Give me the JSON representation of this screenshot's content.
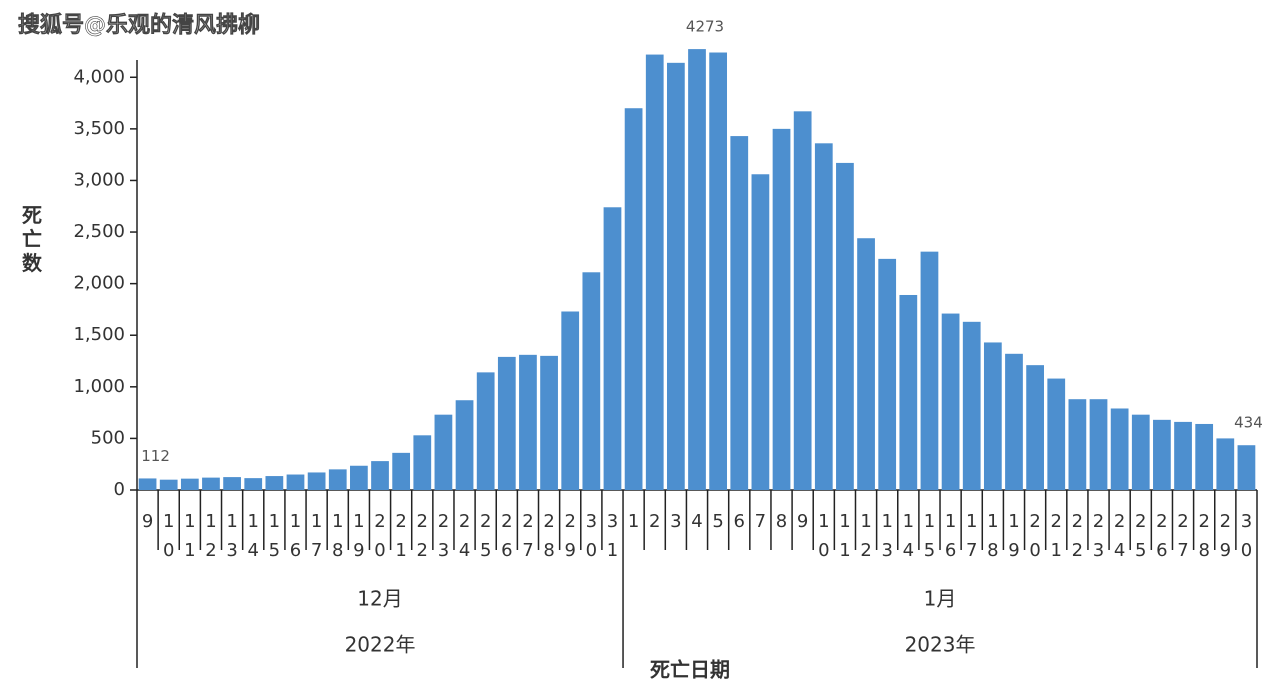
{
  "chart_data": {
    "type": "bar",
    "watermark": "搜狐号@乐观的清风拂柳",
    "y_label": "死亡数",
    "x_label": "死亡日期",
    "color": "#4d8fcf",
    "months": [
      {
        "label": "12月",
        "year": "2022年",
        "days": [
          "9",
          "10",
          "11",
          "12",
          "13",
          "14",
          "15",
          "16",
          "17",
          "18",
          "19",
          "20",
          "21",
          "22",
          "23",
          "24",
          "25",
          "26",
          "27",
          "28",
          "29",
          "30",
          "31"
        ]
      },
      {
        "label": "1月",
        "year": "2023年",
        "days": [
          "1",
          "2",
          "3",
          "4",
          "5",
          "6",
          "7",
          "8",
          "9",
          "10",
          "11",
          "12",
          "13",
          "14",
          "15",
          "16",
          "17",
          "18",
          "19",
          "20",
          "21",
          "22",
          "23",
          "24",
          "25",
          "26",
          "27",
          "28",
          "29",
          "30"
        ]
      }
    ],
    "values": [
      112,
      100,
      110,
      120,
      125,
      115,
      135,
      150,
      170,
      200,
      235,
      280,
      360,
      530,
      730,
      870,
      1140,
      1290,
      1310,
      1300,
      1730,
      2110,
      2740,
      3700,
      4220,
      4140,
      4273,
      4240,
      3430,
      3060,
      3500,
      3670,
      3360,
      3170,
      2440,
      2240,
      1890,
      2310,
      1710,
      1630,
      1430,
      1320,
      1210,
      1080,
      880,
      880,
      790,
      730,
      680,
      660,
      640,
      500,
      434
    ],
    "value_labels": [
      "112",
      null,
      null,
      null,
      null,
      null,
      null,
      null,
      null,
      null,
      null,
      null,
      null,
      null,
      null,
      null,
      null,
      null,
      null,
      null,
      null,
      null,
      null,
      null,
      null,
      null,
      "4273",
      null,
      null,
      null,
      null,
      null,
      null,
      null,
      null,
      null,
      null,
      null,
      null,
      null,
      null,
      null,
      null,
      null,
      null,
      null,
      null,
      null,
      null,
      null,
      null,
      null,
      "434"
    ],
    "ylim": [
      0,
      4400
    ],
    "yticks": [
      0,
      500,
      {
        "value": 1000,
        "label": "1,000"
      },
      {
        "value": 1500,
        "label": "1,500"
      },
      {
        "value": 2000,
        "label": "2,000"
      },
      {
        "value": 2500,
        "label": "2,500"
      },
      {
        "value": 3000,
        "label": "3,000"
      },
      {
        "value": 3500,
        "label": "3,500"
      },
      {
        "value": 4000,
        "label": "4,000"
      }
    ]
  }
}
